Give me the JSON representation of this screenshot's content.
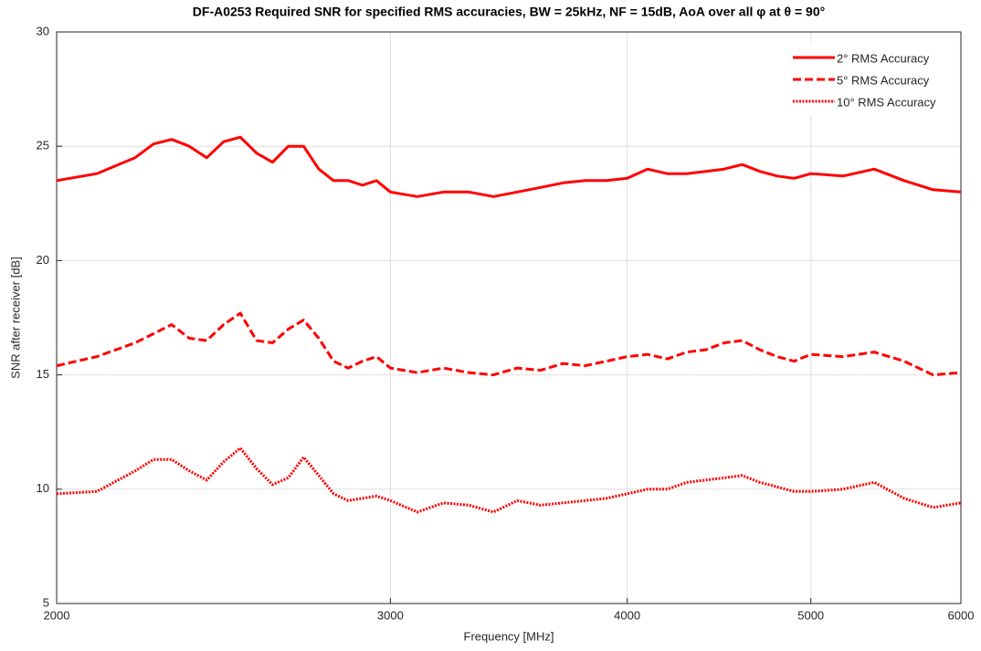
{
  "chart_data": {
    "type": "line",
    "title": "DF-A0253 Required SNR for specified RMS accuracies, BW = 25kHz, NF = 15dB, AoA over all φ at θ = 90°",
    "xlabel": "Frequency [MHz]",
    "ylabel": "SNR after receiver [dB]",
    "xscale": "log",
    "grid": true,
    "legend": "upper right",
    "xlim": [
      2000,
      6000
    ],
    "xticks": [
      2000,
      3000,
      4000,
      5000,
      6000
    ],
    "ylim": [
      5,
      30
    ],
    "yticks": [
      5,
      10,
      15,
      20,
      25,
      30
    ],
    "x": [
      2000,
      2100,
      2200,
      2250,
      2300,
      2350,
      2400,
      2450,
      2500,
      2550,
      2600,
      2650,
      2700,
      2750,
      2800,
      2850,
      2900,
      2950,
      3000,
      3100,
      3200,
      3300,
      3400,
      3500,
      3600,
      3700,
      3800,
      3900,
      4000,
      4100,
      4200,
      4300,
      4400,
      4500,
      4600,
      4700,
      4800,
      4900,
      5000,
      5200,
      5400,
      5600,
      5800,
      6000
    ],
    "series": [
      {
        "name": "2° RMS Accuracy",
        "color": "#ff0000",
        "dash": "solid",
        "values": [
          23.5,
          23.8,
          24.5,
          25.1,
          25.3,
          25.0,
          24.5,
          25.2,
          25.4,
          24.7,
          24.3,
          25.0,
          25.0,
          24.0,
          23.5,
          23.5,
          23.3,
          23.5,
          23.0,
          22.8,
          23.0,
          23.0,
          22.8,
          23.0,
          23.2,
          23.4,
          23.5,
          23.5,
          23.6,
          24.0,
          23.8,
          23.8,
          23.9,
          24.0,
          24.2,
          23.9,
          23.7,
          23.6,
          23.8,
          23.7,
          24.0,
          23.5,
          23.1,
          23.0
        ]
      },
      {
        "name": "5° RMS Accuracy",
        "color": "#ff0000",
        "dash": "dashed",
        "values": [
          15.4,
          15.8,
          16.4,
          16.8,
          17.2,
          16.6,
          16.5,
          17.2,
          17.7,
          16.5,
          16.4,
          17.0,
          17.4,
          16.6,
          15.6,
          15.3,
          15.6,
          15.8,
          15.3,
          15.1,
          15.3,
          15.1,
          15.0,
          15.3,
          15.2,
          15.5,
          15.4,
          15.6,
          15.8,
          15.9,
          15.7,
          16.0,
          16.1,
          16.4,
          16.5,
          16.1,
          15.8,
          15.6,
          15.9,
          15.8,
          16.0,
          15.6,
          15.0,
          15.1
        ]
      },
      {
        "name": "10° RMS Accuracy",
        "color": "#ff0000",
        "dash": "dotted",
        "values": [
          9.8,
          9.9,
          10.8,
          11.3,
          11.3,
          10.8,
          10.4,
          11.2,
          11.8,
          10.9,
          10.2,
          10.5,
          11.4,
          10.6,
          9.8,
          9.5,
          9.6,
          9.7,
          9.5,
          9.0,
          9.4,
          9.3,
          9.0,
          9.5,
          9.3,
          9.4,
          9.5,
          9.6,
          9.8,
          10.0,
          10.0,
          10.3,
          10.4,
          10.5,
          10.6,
          10.3,
          10.1,
          9.9,
          9.9,
          10.0,
          10.3,
          9.6,
          9.2,
          9.4
        ]
      }
    ]
  }
}
